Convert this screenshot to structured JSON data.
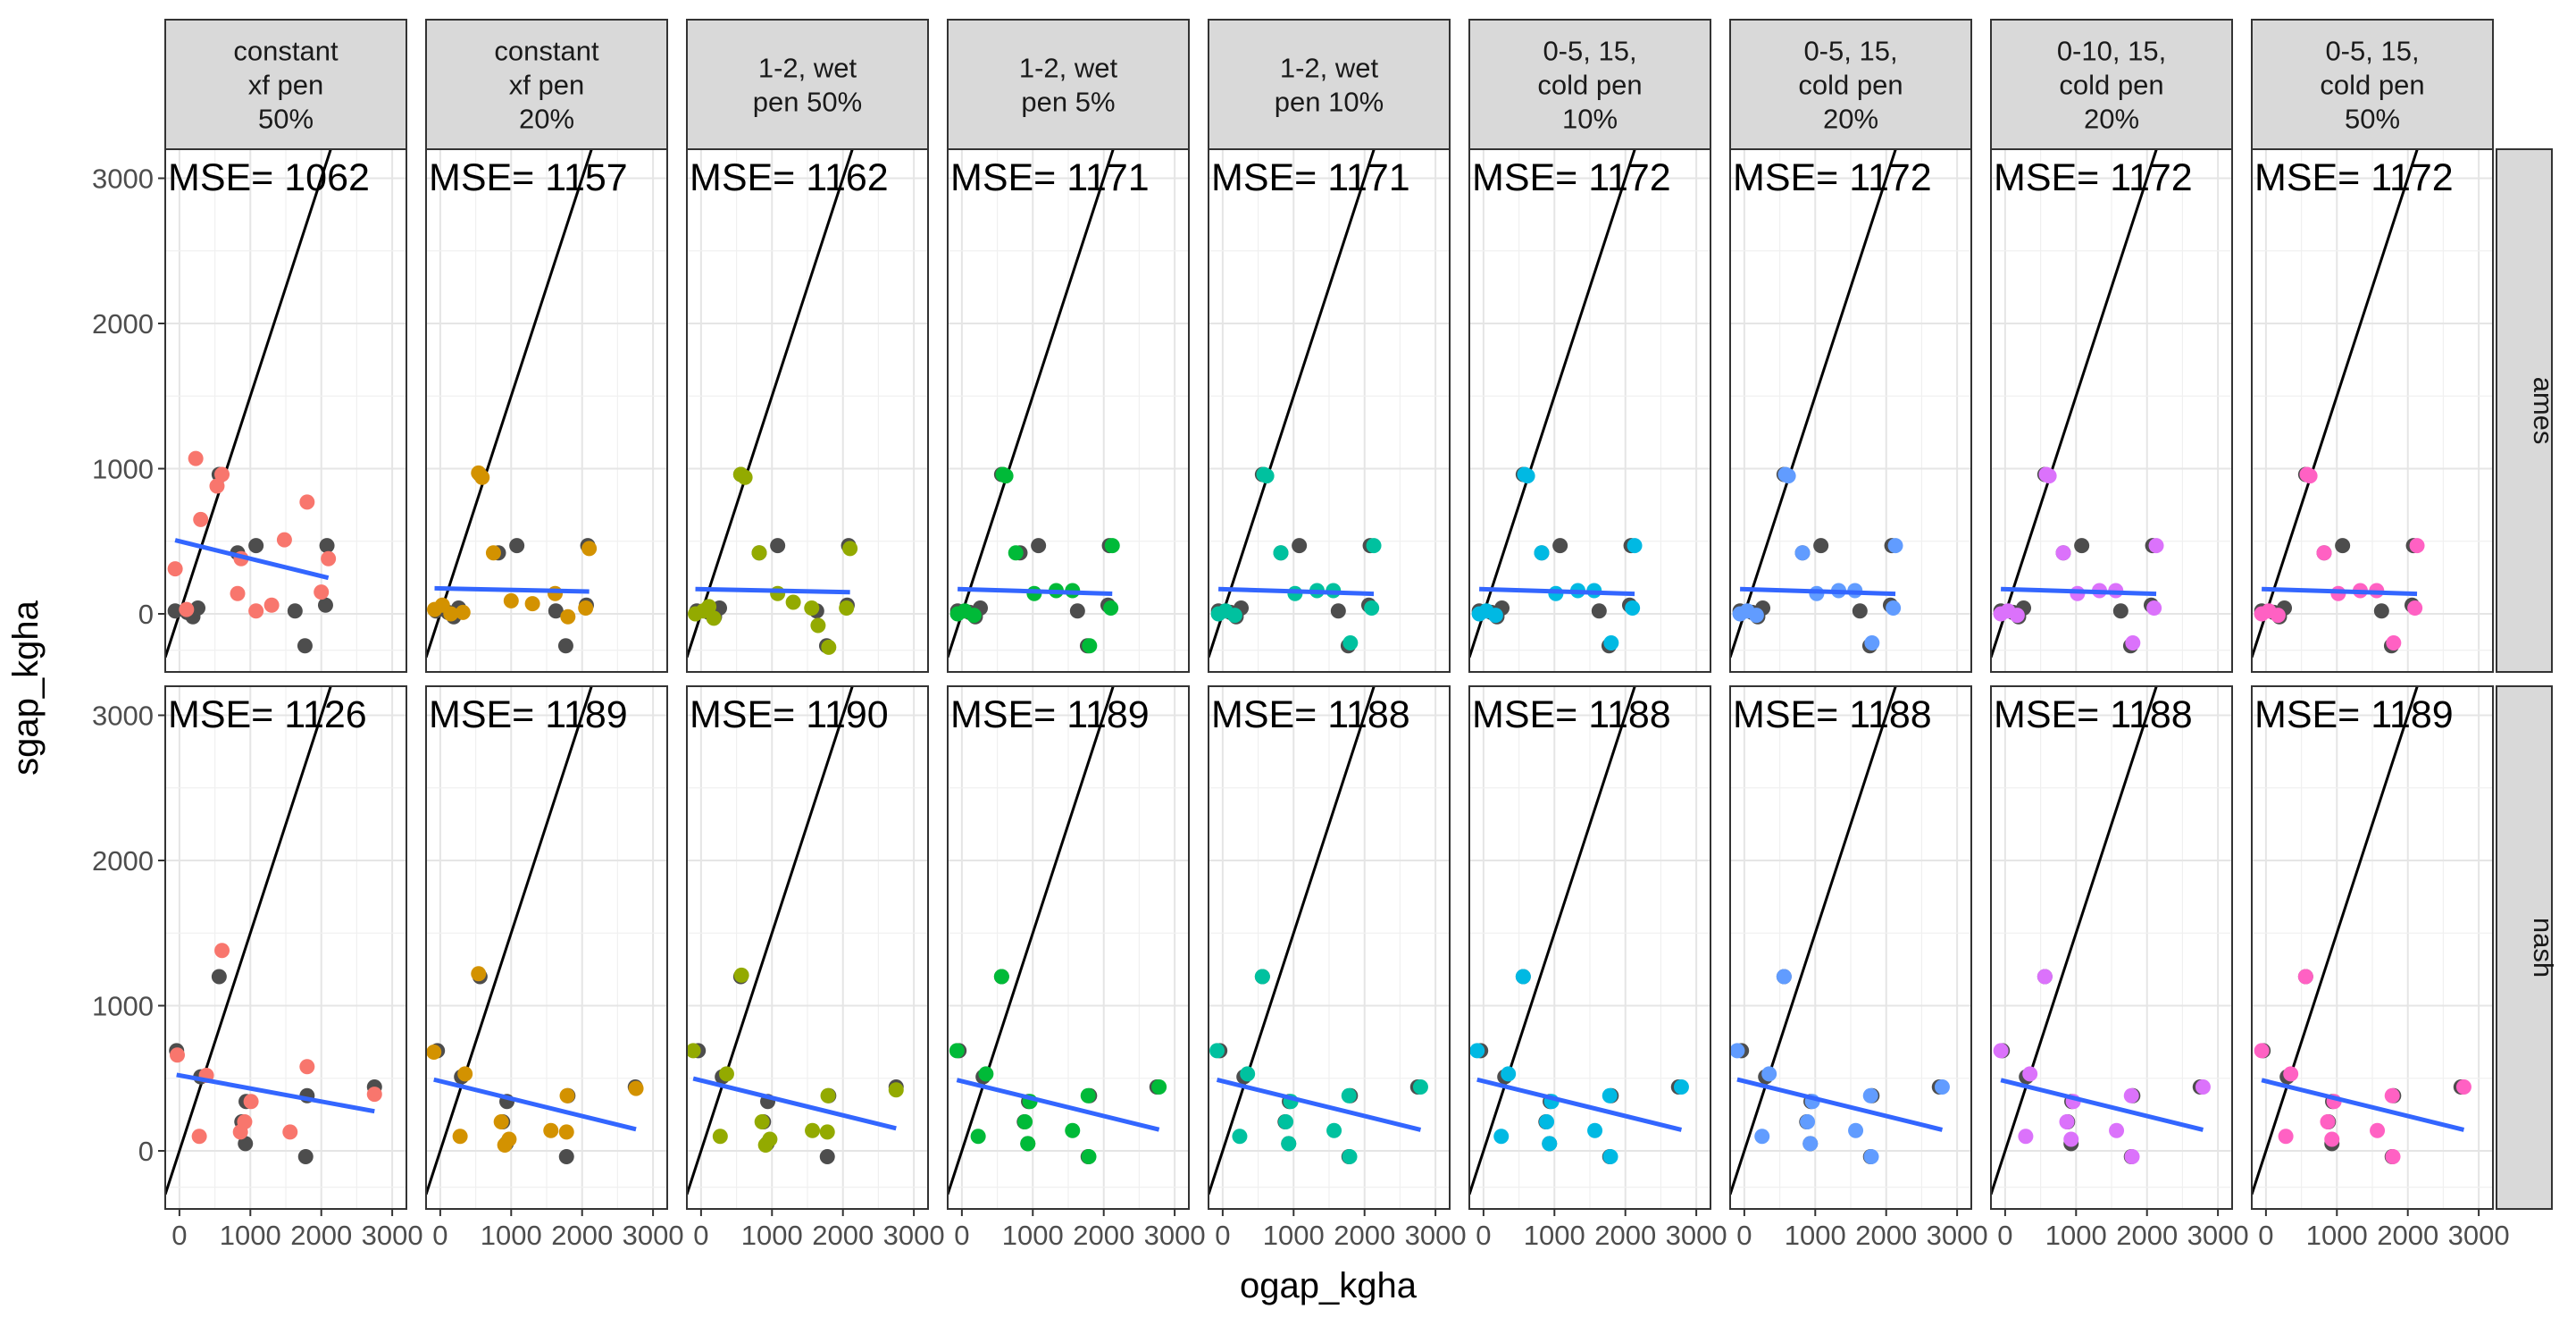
{
  "chart_data": {
    "type": "scatter",
    "xlabel": "ogap_kgha",
    "ylabel": "sgap_kgha",
    "xlim": [
      -200,
      3200
    ],
    "ylim": [
      -400,
      3200
    ],
    "x_ticks": [
      0,
      1000,
      2000,
      3000
    ],
    "x_tick_labels": [
      "0",
      "1000",
      "2000",
      "3000"
    ],
    "y_ticks": [
      0,
      1000,
      2000,
      3000
    ],
    "y_tick_labels": [
      "0",
      "1000",
      "2000",
      "3000"
    ],
    "grid": true,
    "legend": "none",
    "reference_line": {
      "slope": 1.5,
      "intercept": 0
    },
    "panel_columns": [
      {
        "label": "constant\nxf pen\n50%",
        "color": "#F8766D"
      },
      {
        "label": "constant\nxf pen\n20%",
        "color": "#D39200"
      },
      {
        "label": "1-2, wet\npen 50%",
        "color": "#93AA00"
      },
      {
        "label": "1-2, wet\npen 5%",
        "color": "#00BA38"
      },
      {
        "label": "1-2, wet\npen 10%",
        "color": "#00C19F"
      },
      {
        "label": "0-5, 15,\ncold pen\n10%",
        "color": "#00B9E3"
      },
      {
        "label": "0-5, 15,\ncold pen\n20%",
        "color": "#619CFF"
      },
      {
        "label": "0-10, 15,\ncold pen\n20%",
        "color": "#DB72FB"
      },
      {
        "label": "0-5, 15,\ncold pen\n50%",
        "color": "#FF61C3"
      }
    ],
    "panel_rows": [
      "ames",
      "nash"
    ],
    "mse_prefix": "MSE= ",
    "mse": {
      "ames": [
        1062,
        1157,
        1162,
        1171,
        1171,
        1172,
        1172,
        1172,
        1172
      ],
      "nash": [
        1126,
        1189,
        1190,
        1189,
        1188,
        1188,
        1188,
        1188,
        1189
      ]
    },
    "observed": {
      "color": "#4D4D4D",
      "ames": {
        "x": [
          -60,
          110,
          190,
          260,
          560,
          820,
          1080,
          1630,
          1770,
          2060,
          2080
        ],
        "y": [
          20,
          10,
          -20,
          40,
          960,
          420,
          470,
          20,
          -220,
          60,
          470
        ]
      },
      "nash": {
        "x": [
          -40,
          300,
          560,
          880,
          930,
          940,
          1780,
          1800,
          2750
        ],
        "y": [
          690,
          510,
          1200,
          200,
          50,
          340,
          -40,
          380,
          440
        ]
      }
    },
    "series": [
      {
        "name": "constant\nxf pen\n50%",
        "ames": {
          "x": [
            -60,
            100,
            230,
            300,
            530,
            600,
            820,
            870,
            1080,
            1300,
            1480,
            1800,
            2000,
            2100
          ],
          "y": [
            310,
            30,
            1070,
            650,
            880,
            960,
            140,
            380,
            20,
            60,
            510,
            770,
            150,
            380
          ]
        },
        "nash": {
          "x": [
            -30,
            280,
            380,
            600,
            860,
            920,
            1010,
            1560,
            1800,
            2750
          ],
          "y": [
            660,
            100,
            520,
            1380,
            130,
            200,
            340,
            130,
            580,
            390
          ]
        },
        "fit": {
          "ames": [
            500,
            -0.12
          ],
          "nash": [
            520,
            -0.09
          ]
        }
      },
      {
        "name": "constant\nxf pen\n20%",
        "ames": {
          "x": [
            -80,
            30,
            150,
            320,
            540,
            590,
            750,
            1000,
            1300,
            1620,
            1800,
            2050,
            2100
          ],
          "y": [
            30,
            60,
            0,
            10,
            970,
            940,
            420,
            90,
            70,
            140,
            -20,
            40,
            450
          ]
        },
        "nash": {
          "x": [
            -90,
            280,
            350,
            540,
            860,
            910,
            970,
            1560,
            1780,
            1790,
            2760
          ],
          "y": [
            680,
            100,
            530,
            1220,
            200,
            40,
            80,
            140,
            130,
            380,
            430
          ]
        },
        "fit": {
          "ames": [
            175,
            -0.01
          ],
          "nash": [
            480,
            -0.12
          ]
        }
      },
      {
        "name": "1-2, wet\npen 50%",
        "ames": {
          "x": [
            -80,
            30,
            110,
            180,
            560,
            620,
            820,
            1080,
            1300,
            1560,
            1650,
            1800,
            2050,
            2100
          ],
          "y": [
            0,
            20,
            50,
            -30,
            960,
            940,
            420,
            140,
            80,
            40,
            -80,
            -230,
            40,
            450
          ]
        },
        "nash": {
          "x": [
            -110,
            270,
            360,
            570,
            860,
            910,
            970,
            1570,
            1780,
            1790,
            2750
          ],
          "y": [
            690,
            100,
            530,
            1210,
            200,
            40,
            80,
            140,
            130,
            380,
            420
          ]
        },
        "fit": {
          "ames": [
            170,
            -0.01
          ],
          "nash": [
            485,
            -0.12
          ]
        }
      },
      {
        "name": "1-2, wet\npen 5%",
        "ames": {
          "x": [
            -60,
            40,
            170,
            580,
            620,
            760,
            1020,
            1330,
            1560,
            1800,
            2100,
            2120
          ],
          "y": [
            0,
            20,
            -10,
            960,
            950,
            420,
            140,
            160,
            160,
            -220,
            40,
            470
          ]
        },
        "nash": {
          "x": [
            -70,
            230,
            340,
            560,
            890,
            930,
            960,
            1560,
            1780,
            1790,
            2780
          ],
          "y": [
            690,
            100,
            530,
            1200,
            200,
            50,
            340,
            140,
            380,
            -40,
            440
          ]
        },
        "fit": {
          "ames": [
            170,
            -0.015
          ],
          "nash": [
            480,
            -0.12
          ]
        }
      },
      {
        "name": "1-2, wet\npen 10%",
        "ames": {
          "x": [
            -60,
            40,
            170,
            580,
            620,
            820,
            1020,
            1330,
            1560,
            1800,
            2100,
            2130
          ],
          "y": [
            0,
            20,
            -10,
            960,
            950,
            420,
            140,
            160,
            160,
            -200,
            40,
            470
          ]
        },
        "nash": {
          "x": [
            -80,
            240,
            350,
            560,
            890,
            930,
            960,
            1570,
            1780,
            1790,
            2790
          ],
          "y": [
            690,
            100,
            530,
            1200,
            200,
            50,
            340,
            140,
            380,
            -40,
            440
          ]
        },
        "fit": {
          "ames": [
            170,
            -0.015
          ],
          "nash": [
            480,
            -0.12
          ]
        }
      },
      {
        "name": "0-5, 15,\ncold pen\n10%",
        "ames": {
          "x": [
            -60,
            40,
            170,
            580,
            620,
            820,
            1020,
            1330,
            1560,
            1800,
            2100,
            2130
          ],
          "y": [
            0,
            20,
            -10,
            960,
            950,
            420,
            140,
            160,
            160,
            -200,
            40,
            470
          ]
        },
        "nash": {
          "x": [
            -90,
            250,
            350,
            560,
            890,
            930,
            960,
            1570,
            1780,
            1790,
            2790
          ],
          "y": [
            690,
            100,
            530,
            1200,
            200,
            50,
            340,
            140,
            380,
            -40,
            440
          ]
        },
        "fit": {
          "ames": [
            170,
            -0.015
          ],
          "nash": [
            480,
            -0.12
          ]
        }
      },
      {
        "name": "0-5, 15,\ncold pen\n20%",
        "ames": {
          "x": [
            -60,
            40,
            170,
            580,
            620,
            820,
            1020,
            1330,
            1560,
            1800,
            2100,
            2130
          ],
          "y": [
            0,
            20,
            -10,
            960,
            950,
            420,
            140,
            160,
            160,
            -200,
            40,
            470
          ]
        },
        "nash": {
          "x": [
            -100,
            250,
            350,
            560,
            890,
            930,
            960,
            1570,
            1780,
            1790,
            2790
          ],
          "y": [
            690,
            100,
            530,
            1200,
            200,
            50,
            340,
            140,
            380,
            -40,
            440
          ]
        },
        "fit": {
          "ames": [
            170,
            -0.015
          ],
          "nash": [
            480,
            -0.12
          ]
        }
      },
      {
        "name": "0-10, 15,\ncold pen\n20%",
        "ames": {
          "x": [
            -60,
            40,
            170,
            580,
            620,
            820,
            1020,
            1330,
            1560,
            1800,
            2100,
            2130
          ],
          "y": [
            0,
            20,
            -10,
            960,
            950,
            420,
            140,
            160,
            160,
            -200,
            40,
            470
          ]
        },
        "nash": {
          "x": [
            -60,
            290,
            350,
            560,
            870,
            930,
            960,
            1570,
            1780,
            1790,
            2790
          ],
          "y": [
            690,
            100,
            530,
            1200,
            200,
            80,
            340,
            140,
            380,
            -40,
            440
          ]
        },
        "fit": {
          "ames": [
            170,
            -0.015
          ],
          "nash": [
            480,
            -0.12
          ]
        }
      },
      {
        "name": "0-5, 15,\ncold pen\n50%",
        "ames": {
          "x": [
            -60,
            40,
            170,
            580,
            620,
            820,
            1020,
            1330,
            1560,
            1800,
            2100,
            2130
          ],
          "y": [
            0,
            20,
            -10,
            960,
            950,
            420,
            140,
            160,
            160,
            -200,
            40,
            470
          ]
        },
        "nash": {
          "x": [
            -60,
            280,
            350,
            560,
            870,
            930,
            960,
            1570,
            1780,
            1790,
            2790
          ],
          "y": [
            690,
            100,
            530,
            1200,
            200,
            80,
            340,
            140,
            380,
            -40,
            440
          ]
        },
        "fit": {
          "ames": [
            170,
            -0.015
          ],
          "nash": [
            480,
            -0.12
          ]
        }
      }
    ],
    "fit_line_color": "#3366FF"
  }
}
